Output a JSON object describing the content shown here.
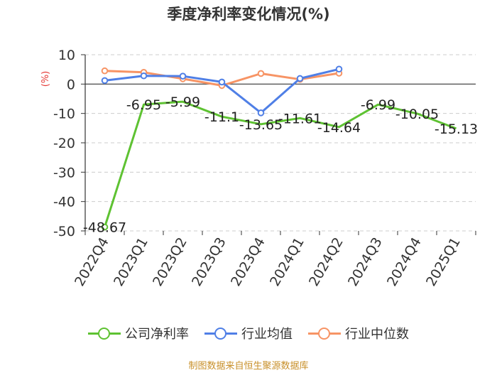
{
  "chart_data": {
    "type": "line",
    "title": "季度净利率变化情况(%)",
    "ylabel": "(%)",
    "ylim": [
      -50,
      10
    ],
    "yticks": [
      10,
      0,
      -10,
      -20,
      -30,
      -40,
      -50
    ],
    "grid": true,
    "legend_position": "bottom",
    "categories": [
      "2022Q4",
      "2023Q1",
      "2023Q2",
      "2023Q3",
      "2023Q4",
      "2024Q1",
      "2024Q2",
      "2024Q3",
      "2024Q4",
      "2025Q1"
    ],
    "series": [
      {
        "name": "公司净利率",
        "color": "#5ec232",
        "values": [
          -48.67,
          -6.95,
          -5.99,
          -11.1,
          -13.65,
          -11.61,
          -14.64,
          -6.99,
          -10.05,
          -15.13
        ],
        "labels": [
          "-48.67",
          "-6.95",
          "-5.99",
          "-11.1",
          "-13.65",
          "-11.61",
          "-14.64",
          "-6.99",
          "-10.05",
          "-15.13"
        ]
      },
      {
        "name": "行业均值",
        "color": "#4f7fe6",
        "values": [
          1.2,
          2.8,
          2.7,
          0.7,
          -9.8,
          1.9,
          5.1,
          null,
          null,
          null
        ]
      },
      {
        "name": "行业中位数",
        "color": "#f79465",
        "values": [
          4.5,
          4.0,
          1.8,
          -0.5,
          3.6,
          1.6,
          3.7,
          null,
          null,
          null
        ]
      }
    ],
    "source": "制图数据来自恒生聚源数据库"
  }
}
